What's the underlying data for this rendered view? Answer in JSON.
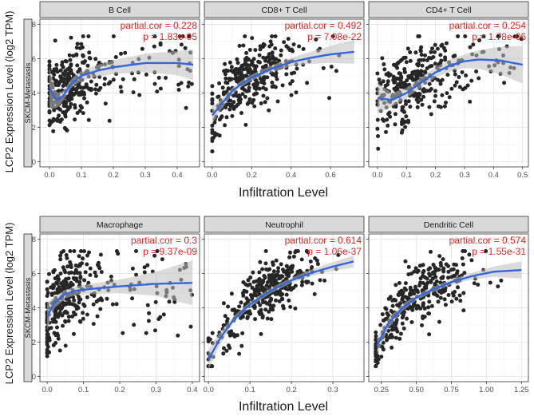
{
  "figure": {
    "ylabel": "LCP2 Expression Level (log2 TPM)",
    "xlabel": "Infiltration Level",
    "row_label": "SKCM-Metastasis",
    "colors": {
      "point": "#262626",
      "fit": "#3366dd",
      "ribbon": "#bdbdbd",
      "panel_bg": "#ffffff",
      "grid": "#e6e6e6",
      "strip_bg": "#d9d9d9",
      "annotation": "#e8231f",
      "axis_text": "#4d4d4d",
      "title_text": "#1a1a1a"
    }
  },
  "chart_data": [
    {
      "type": "scatter",
      "title": "B Cell",
      "partial_cor": "partial.cor = 0.228",
      "p_value": "p = 1.83e-05",
      "xlim": [
        -0.03,
        0.47
      ],
      "ylim": [
        -0.3,
        8.3
      ],
      "xticks": [
        0.0,
        0.1,
        0.2,
        0.3,
        0.4
      ],
      "xtick_labels": [
        "0.0",
        "0.1",
        "0.2",
        "0.3",
        "0.4"
      ],
      "yticks": [
        0,
        2,
        4,
        6,
        8
      ],
      "ytick_labels": [
        "0",
        "2",
        "4",
        "6",
        "8"
      ],
      "show_y_labels": true,
      "n_points": 330,
      "seed": 11,
      "x_dist": {
        "mode": "mix",
        "center": 0.05,
        "spread": 0.035,
        "max": 0.45,
        "tail": 0.35
      },
      "y_model": {
        "base": 3.6,
        "amp": 2.0,
        "k": 12,
        "noise": 1.1
      },
      "fit": [
        [
          0.0,
          4.3
        ],
        [
          0.02,
          3.6
        ],
        [
          0.04,
          3.75
        ],
        [
          0.07,
          4.6
        ],
        [
          0.1,
          5.0
        ],
        [
          0.15,
          5.3
        ],
        [
          0.2,
          5.5
        ],
        [
          0.3,
          5.75
        ],
        [
          0.4,
          5.75
        ],
        [
          0.45,
          5.65
        ]
      ],
      "band": [
        1.2,
        0.5,
        0.3,
        0.25,
        0.3,
        0.35,
        0.4,
        0.55,
        0.7,
        0.9
      ]
    },
    {
      "type": "scatter",
      "title": "CD8+ T Cell",
      "partial_cor": "partial.cor = 0.492",
      "p_value": "p = 7.08e-22",
      "xlim": [
        -0.04,
        0.77
      ],
      "ylim": [
        -0.3,
        8.3
      ],
      "xticks": [
        0.0,
        0.2,
        0.4,
        0.6
      ],
      "xtick_labels": [
        "0.0",
        "0.2",
        "0.4",
        "0.6"
      ],
      "yticks": [
        0,
        2,
        4,
        6,
        8
      ],
      "ytick_labels": [],
      "show_y_labels": false,
      "n_points": 330,
      "seed": 23,
      "x_dist": {
        "mode": "mix",
        "center": 0.17,
        "spread": 0.1,
        "max": 0.72,
        "tail": 0.2
      },
      "y_model": {
        "base": 2.4,
        "amp": 3.9,
        "k": 6,
        "noise": 0.9
      },
      "fit": [
        [
          0.0,
          2.7
        ],
        [
          0.05,
          3.4
        ],
        [
          0.1,
          4.1
        ],
        [
          0.15,
          4.55
        ],
        [
          0.2,
          4.9
        ],
        [
          0.3,
          5.4
        ],
        [
          0.4,
          5.8
        ],
        [
          0.5,
          6.05
        ],
        [
          0.6,
          6.25
        ],
        [
          0.72,
          6.4
        ]
      ],
      "band": [
        0.5,
        0.3,
        0.2,
        0.18,
        0.18,
        0.2,
        0.25,
        0.35,
        0.5,
        0.7
      ]
    },
    {
      "type": "scatter",
      "title": "CD4+ T Cell",
      "partial_cor": "partial.cor = 0.254",
      "p_value": "p = 1.78e-06",
      "xlim": [
        -0.03,
        0.52
      ],
      "ylim": [
        -0.3,
        8.3
      ],
      "xticks": [
        0.0,
        0.1,
        0.2,
        0.3,
        0.4,
        0.5
      ],
      "xtick_labels": [
        "0.0",
        "0.1",
        "0.2",
        "0.3",
        "0.4",
        "0.5"
      ],
      "yticks": [
        0,
        2,
        4,
        6,
        8
      ],
      "ytick_labels": [],
      "show_y_labels": false,
      "n_points": 330,
      "seed": 37,
      "x_dist": {
        "mode": "mix",
        "center": 0.11,
        "spread": 0.06,
        "max": 0.5,
        "tail": 0.3
      },
      "y_model": {
        "base": 3.0,
        "amp": 2.8,
        "k": 9,
        "noise": 1.1
      },
      "fit": [
        [
          0.0,
          3.7
        ],
        [
          0.05,
          3.6
        ],
        [
          0.1,
          4.0
        ],
        [
          0.15,
          4.6
        ],
        [
          0.2,
          5.2
        ],
        [
          0.25,
          5.6
        ],
        [
          0.3,
          5.85
        ],
        [
          0.35,
          5.95
        ],
        [
          0.42,
          5.9
        ],
        [
          0.5,
          5.65
        ]
      ],
      "band": [
        0.9,
        0.4,
        0.3,
        0.3,
        0.3,
        0.35,
        0.4,
        0.55,
        0.8,
        1.1
      ]
    },
    {
      "type": "scatter",
      "title": "Macrophage",
      "partial_cor": "partial.cor = 0.3",
      "p_value": "p = 9.37e-09",
      "xlim": [
        -0.02,
        0.42
      ],
      "ylim": [
        -0.3,
        8.3
      ],
      "xticks": [
        0.0,
        0.1,
        0.2,
        0.3,
        0.4
      ],
      "xtick_labels": [
        "0.0",
        "0.1",
        "0.2",
        "0.3",
        "0.4"
      ],
      "yticks": [
        0,
        2,
        4,
        6,
        8
      ],
      "ytick_labels": [
        "0",
        "2",
        "4",
        "6",
        "8"
      ],
      "show_y_labels": true,
      "n_points": 330,
      "seed": 51,
      "x_dist": {
        "mode": "mix",
        "center": 0.04,
        "spread": 0.04,
        "max": 0.4,
        "tail": 0.4
      },
      "y_model": {
        "base": 3.2,
        "amp": 2.1,
        "k": 30,
        "noise": 1.2
      },
      "fit": [
        [
          0.0,
          3.5
        ],
        [
          0.02,
          4.3
        ],
        [
          0.05,
          4.8
        ],
        [
          0.08,
          5.0
        ],
        [
          0.12,
          5.1
        ],
        [
          0.2,
          5.25
        ],
        [
          0.3,
          5.4
        ],
        [
          0.4,
          5.45
        ]
      ],
      "band": [
        0.8,
        0.35,
        0.25,
        0.25,
        0.3,
        0.4,
        0.7,
        1.3
      ]
    },
    {
      "type": "scatter",
      "title": "Neutrophil",
      "partial_cor": "partial.cor = 0.614",
      "p_value": "p = 1.06e-37",
      "xlim": [
        -0.01,
        0.375
      ],
      "ylim": [
        -0.3,
        8.3
      ],
      "xticks": [
        0.0,
        0.1,
        0.2,
        0.3
      ],
      "xtick_labels": [
        "0.0",
        "0.1",
        "0.2",
        "0.3"
      ],
      "yticks": [
        0,
        2,
        4,
        6,
        8
      ],
      "ytick_labels": [],
      "show_y_labels": false,
      "n_points": 330,
      "seed": 67,
      "x_dist": {
        "mode": "uniformish",
        "center": 0.13,
        "spread": 0.07,
        "max": 0.36,
        "tail": 0.0
      },
      "y_model": {
        "base": 0.8,
        "amp": 6.0,
        "k": 9,
        "noise": 0.75
      },
      "fit": [
        [
          0.0,
          1.0
        ],
        [
          0.03,
          2.3
        ],
        [
          0.06,
          3.3
        ],
        [
          0.1,
          4.2
        ],
        [
          0.15,
          5.0
        ],
        [
          0.2,
          5.6
        ],
        [
          0.25,
          6.05
        ],
        [
          0.3,
          6.4
        ],
        [
          0.35,
          6.7
        ]
      ],
      "band": [
        0.6,
        0.35,
        0.2,
        0.15,
        0.15,
        0.15,
        0.2,
        0.25,
        0.35
      ]
    },
    {
      "type": "scatter",
      "title": "Dendritic Cell",
      "partial_cor": "partial.cor = 0.574",
      "p_value": "p = 1.55e-31",
      "xlim": [
        0.16,
        1.3
      ],
      "ylim": [
        -0.3,
        8.3
      ],
      "xticks": [
        0.25,
        0.5,
        0.75,
        1.0,
        1.25
      ],
      "xtick_labels": [
        "0.25",
        "0.50",
        "0.75",
        "1.00",
        "1.25"
      ],
      "yticks": [
        0,
        2,
        4,
        6,
        8
      ],
      "ytick_labels": [],
      "show_y_labels": false,
      "n_points": 330,
      "seed": 83,
      "x_dist": {
        "mode": "uniformish",
        "center": 0.5,
        "spread": 0.2,
        "max": 1.25,
        "tail": 0.0,
        "min": 0.21
      },
      "y_model": {
        "base": 1.4,
        "amp": 5.0,
        "k": 4,
        "noise": 0.8,
        "x0": 0.21
      },
      "fit": [
        [
          0.22,
          1.8
        ],
        [
          0.3,
          3.1
        ],
        [
          0.4,
          4.0
        ],
        [
          0.5,
          4.6
        ],
        [
          0.6,
          5.0
        ],
        [
          0.75,
          5.5
        ],
        [
          0.9,
          5.85
        ],
        [
          1.05,
          6.1
        ],
        [
          1.25,
          6.2
        ]
      ],
      "band": [
        0.5,
        0.3,
        0.2,
        0.15,
        0.15,
        0.15,
        0.2,
        0.3,
        0.5
      ]
    }
  ]
}
